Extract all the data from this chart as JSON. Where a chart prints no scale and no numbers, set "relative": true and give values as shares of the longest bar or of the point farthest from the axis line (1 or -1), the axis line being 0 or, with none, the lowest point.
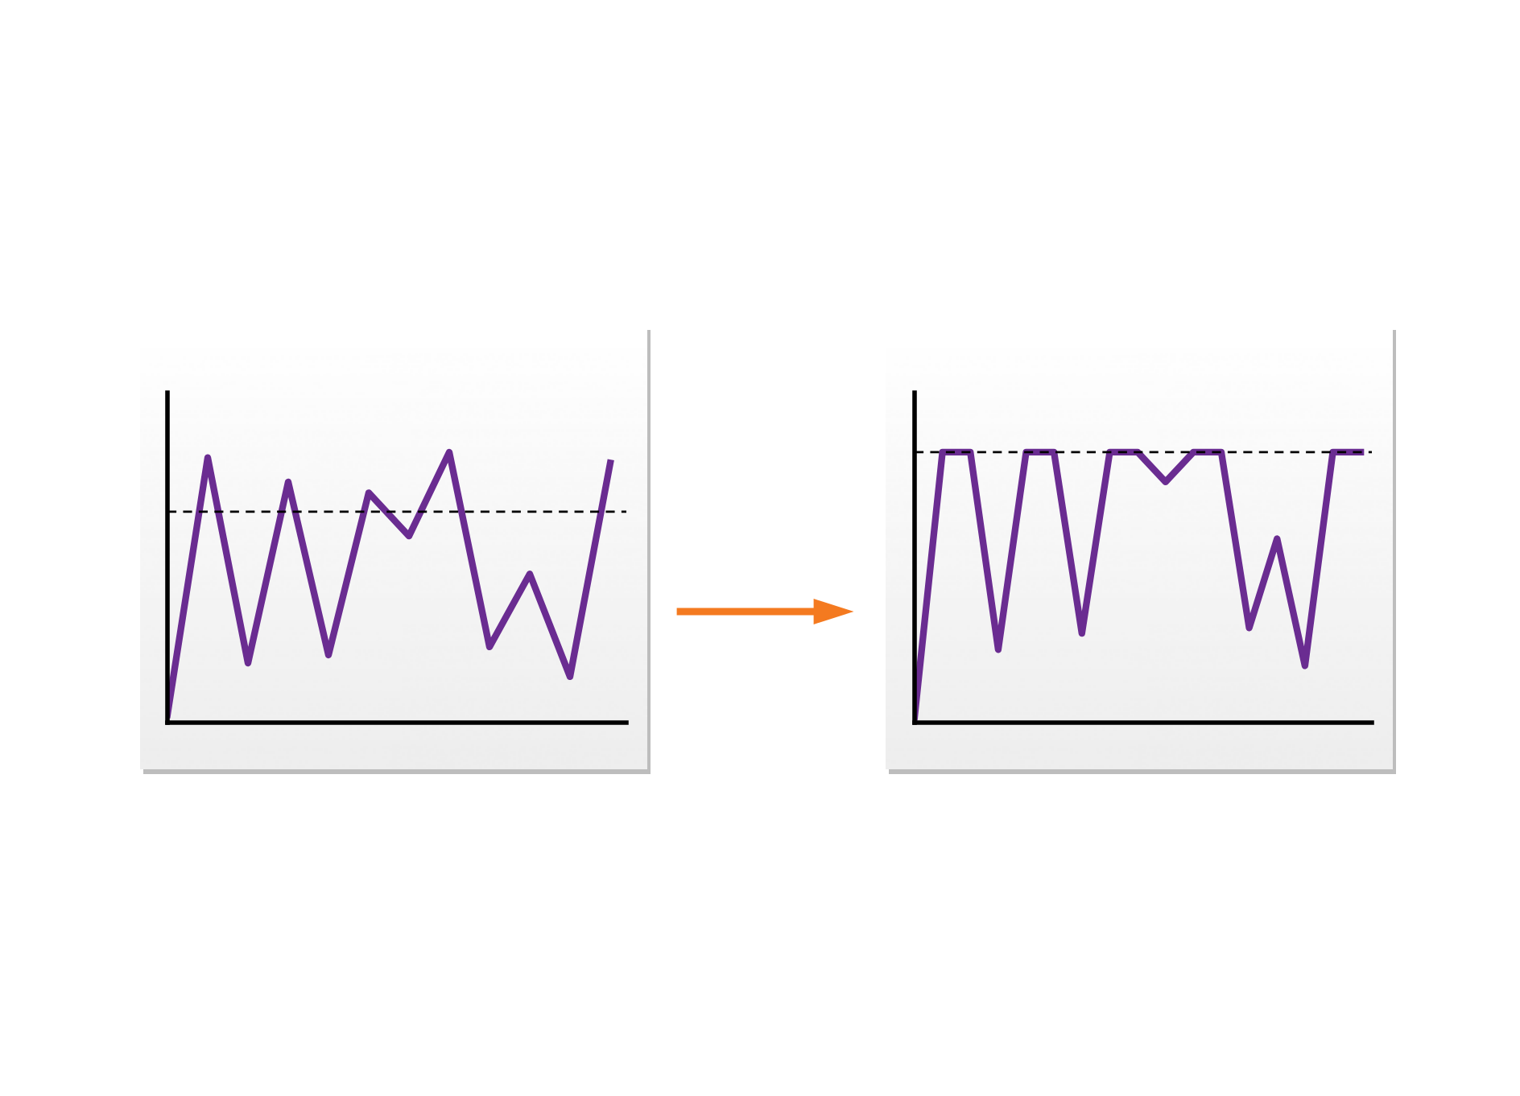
{
  "chart_data": [
    {
      "type": "line",
      "relative": true,
      "categories": [
        null,
        null,
        null,
        null,
        null,
        null,
        null,
        null,
        null,
        null,
        null,
        null
      ],
      "series": [
        {
          "color": "#6a2c91",
          "values": [
            0.03,
            0.98,
            0.22,
            0.89,
            0.25,
            0.85,
            0.69,
            1.0,
            0.28,
            0.55,
            0.17,
            0.96
          ]
        }
      ],
      "ref_lines": [
        {
          "axis": "y",
          "value": 0.78,
          "color": "#000000",
          "line_style": "dashed"
        }
      ],
      "marker": "none",
      "line_style": "solid"
    },
    {
      "type": "line",
      "relative": true,
      "categories": [
        null,
        null,
        null,
        null,
        null,
        null,
        null,
        null,
        null,
        null,
        null,
        null,
        null,
        null,
        null,
        null,
        null
      ],
      "series": [
        {
          "color": "#6a2c91",
          "values": [
            0.02,
            1,
            1,
            0.27,
            1,
            1,
            0.33,
            1,
            1,
            0.89,
            1,
            1,
            0.35,
            0.68,
            0.21,
            1,
            1
          ]
        }
      ],
      "ref_lines": [
        {
          "axis": "y",
          "value": 1,
          "color": "#000000",
          "line_style": "dashed"
        }
      ],
      "marker": "none",
      "line_style": "solid"
    }
  ]
}
